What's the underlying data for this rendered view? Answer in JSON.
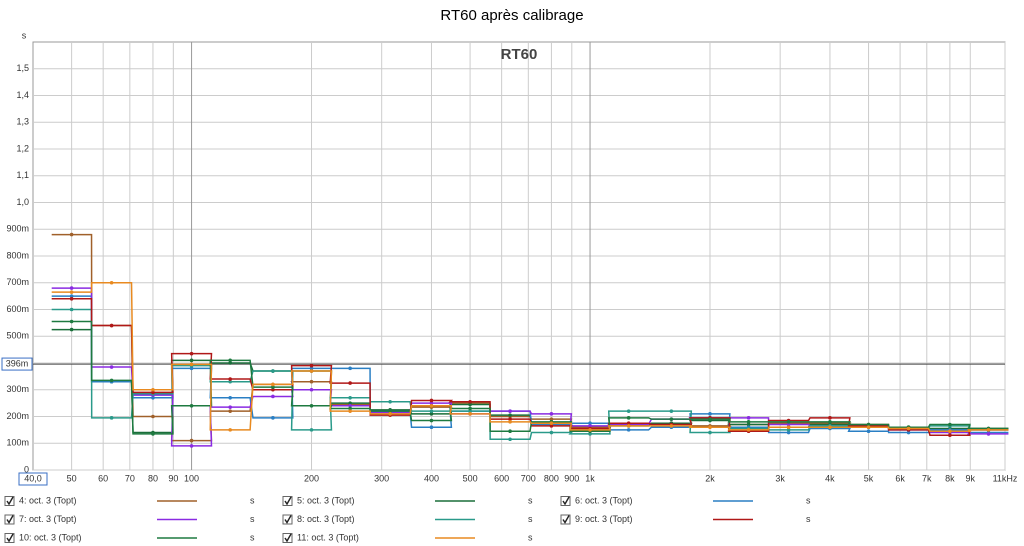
{
  "chart_data": {
    "type": "step",
    "title": "RT60 après calibrage",
    "plot_title": "RT60",
    "y_unit": "s",
    "legend_unit": "s",
    "x_scale": "log",
    "grid": true,
    "xlim": [
      40,
      11000
    ],
    "ylim": [
      0,
      1.6
    ],
    "x_cursor": {
      "value": 40,
      "label": "40,0"
    },
    "y_cursor": {
      "value": 0.396,
      "label": "396m"
    },
    "xticks": [
      50,
      60,
      70,
      80,
      90,
      100,
      200,
      300,
      400,
      500,
      600,
      700,
      800,
      900,
      {
        "value": 1000,
        "label": "1k"
      },
      {
        "value": 2000,
        "label": "2k"
      },
      {
        "value": 3000,
        "label": "3k"
      },
      {
        "value": 4000,
        "label": "4k"
      },
      {
        "value": 5000,
        "label": "5k"
      },
      {
        "value": 6000,
        "label": "6k"
      },
      {
        "value": 7000,
        "label": "7k"
      },
      {
        "value": 8000,
        "label": "8k"
      },
      {
        "value": 9000,
        "label": "9k"
      },
      {
        "value": 11000,
        "label": "11kHz"
      }
    ],
    "yticks": [
      0,
      {
        "value": 0.1,
        "label": "100m"
      },
      {
        "value": 0.2,
        "label": "200m"
      },
      {
        "value": 0.3,
        "label": "300m"
      },
      {
        "value": 0.4,
        "label": "400m"
      },
      {
        "value": 0.5,
        "label": "500m"
      },
      {
        "value": 0.6,
        "label": "600m"
      },
      {
        "value": 0.7,
        "label": "700m"
      },
      {
        "value": 0.8,
        "label": "800m"
      },
      {
        "value": 0.9,
        "label": "900m"
      },
      {
        "value": 1.0,
        "label": "1,0"
      },
      {
        "value": 1.1,
        "label": "1,1"
      },
      {
        "value": 1.2,
        "label": "1,2"
      },
      {
        "value": 1.3,
        "label": "1,3"
      },
      {
        "value": 1.4,
        "label": "1,4"
      },
      {
        "value": 1.5,
        "label": "1,5"
      }
    ],
    "x": [
      50,
      63,
      80,
      100,
      125,
      160,
      200,
      250,
      315,
      400,
      500,
      630,
      800,
      1000,
      1250,
      1600,
      2000,
      2500,
      3150,
      4000,
      5000,
      6300,
      8000,
      10000
    ],
    "series": [
      {
        "name": "4: oct. 3 (Topt)",
        "color": "#a0602a",
        "values": [
          0.88,
          0.54,
          0.2,
          0.11,
          0.22,
          0.32,
          0.33,
          0.245,
          0.22,
          0.235,
          0.25,
          0.2,
          0.19,
          0.16,
          0.17,
          0.175,
          0.165,
          0.17,
          0.175,
          0.175,
          0.17,
          0.16,
          0.15,
          0.155
        ]
      },
      {
        "name": "5: oct. 3 (Topt)",
        "color": "#1a6e3a",
        "values": [
          0.525,
          0.33,
          0.14,
          0.41,
          0.4,
          0.37,
          0.37,
          0.25,
          0.225,
          0.21,
          0.245,
          0.205,
          0.175,
          0.15,
          0.165,
          0.175,
          0.185,
          0.17,
          0.16,
          0.17,
          0.165,
          0.16,
          0.155,
          0.155
        ]
      },
      {
        "name": "6: oct. 3 (Topt)",
        "color": "#2a7fc4",
        "values": [
          0.65,
          0.33,
          0.27,
          0.38,
          0.27,
          0.195,
          0.38,
          0.38,
          0.22,
          0.16,
          0.22,
          0.22,
          0.17,
          0.175,
          0.15,
          0.16,
          0.21,
          0.16,
          0.14,
          0.155,
          0.145,
          0.14,
          0.15,
          0.14
        ]
      },
      {
        "name": "7: oct. 3 (Topt)",
        "color": "#8a2be2",
        "values": [
          0.68,
          0.385,
          0.28,
          0.09,
          0.235,
          0.275,
          0.3,
          0.24,
          0.215,
          0.25,
          0.21,
          0.22,
          0.21,
          0.165,
          0.17,
          0.19,
          0.195,
          0.195,
          0.17,
          0.165,
          0.16,
          0.15,
          0.14,
          0.135
        ]
      },
      {
        "name": "8: oct. 3 (Topt)",
        "color": "#2a9a8a",
        "values": [
          0.6,
          0.195,
          0.285,
          0.39,
          0.33,
          0.37,
          0.15,
          0.27,
          0.255,
          0.22,
          0.22,
          0.115,
          0.14,
          0.135,
          0.22,
          0.22,
          0.14,
          0.155,
          0.15,
          0.165,
          0.16,
          0.155,
          0.165,
          0.15
        ]
      },
      {
        "name": "9: oct. 3 (Topt)",
        "color": "#b01818",
        "values": [
          0.64,
          0.54,
          0.29,
          0.435,
          0.34,
          0.3,
          0.39,
          0.325,
          0.205,
          0.26,
          0.255,
          0.19,
          0.165,
          0.155,
          0.175,
          0.17,
          0.195,
          0.145,
          0.185,
          0.195,
          0.165,
          0.15,
          0.13,
          0.15
        ]
      },
      {
        "name": "10: oct. 3 (Topt)",
        "color": "#1e7a40",
        "values": [
          0.555,
          0.335,
          0.135,
          0.24,
          0.41,
          0.31,
          0.24,
          0.23,
          0.22,
          0.185,
          0.23,
          0.145,
          0.18,
          0.145,
          0.195,
          0.19,
          0.19,
          0.18,
          0.18,
          0.18,
          0.17,
          0.16,
          0.17,
          0.155
        ]
      },
      {
        "name": "11: oct. 3 (Topt)",
        "color": "#e88a20",
        "values": [
          0.665,
          0.7,
          0.3,
          0.395,
          0.15,
          0.32,
          0.37,
          0.22,
          0.21,
          0.24,
          0.21,
          0.18,
          0.175,
          0.15,
          0.165,
          0.165,
          0.16,
          0.15,
          0.16,
          0.16,
          0.16,
          0.155,
          0.145,
          0.15
        ]
      }
    ]
  }
}
